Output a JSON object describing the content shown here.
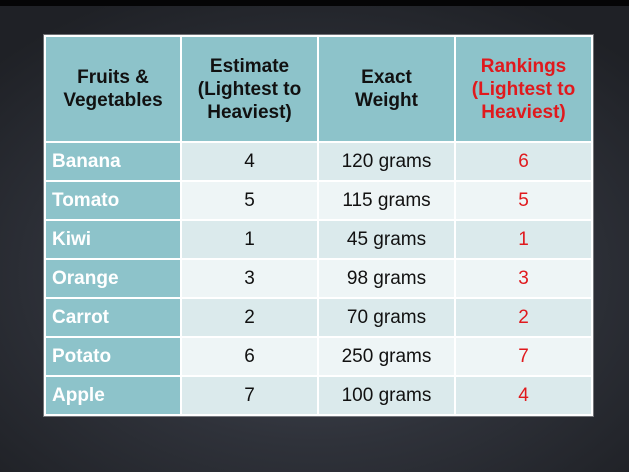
{
  "table": {
    "headers": [
      "Fruits & Vegetables",
      "Estimate (Lightest to Heaviest)",
      "Exact Weight",
      "Rankings (Lightest to Heaviest)"
    ],
    "header_lines": [
      [
        "Fruits &",
        "Vegetables"
      ],
      [
        "Estimate",
        "(Lightest to",
        "Heaviest)"
      ],
      [
        "Exact",
        "Weight"
      ],
      [
        "Rankings",
        "(Lightest to",
        "Heaviest)"
      ]
    ],
    "rows": [
      {
        "name": "Banana",
        "estimate": "4",
        "weight": "120 grams",
        "ranking": "6"
      },
      {
        "name": "Tomato",
        "estimate": "5",
        "weight": "115 grams",
        "ranking": "5"
      },
      {
        "name": "Kiwi",
        "estimate": "1",
        "weight": "45 grams",
        "ranking": "1"
      },
      {
        "name": "Orange",
        "estimate": "3",
        "weight": "98 grams",
        "ranking": "3"
      },
      {
        "name": "Carrot",
        "estimate": "2",
        "weight": "70 grams",
        "ranking": "2"
      },
      {
        "name": "Potato",
        "estimate": "6",
        "weight": "250 grams",
        "ranking": "7"
      },
      {
        "name": "Apple",
        "estimate": "7",
        "weight": "100 grams",
        "ranking": "4"
      }
    ]
  },
  "colors": {
    "header_bg": "#8dc3ca",
    "row_light": "#eef5f6",
    "row_mid": "#dbeaec",
    "ranking_red": "#e0191d",
    "background": "#2f323a"
  }
}
